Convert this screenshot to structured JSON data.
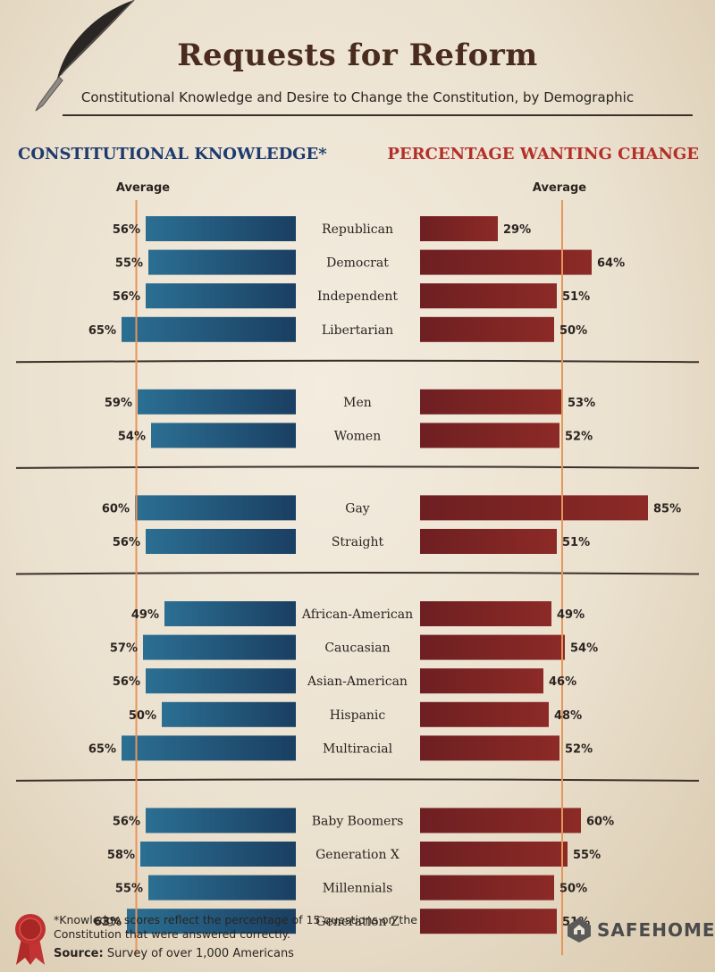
{
  "title": "Requests for Reform",
  "subtitle": "Constitutional Knowledge and Desire to Change the Constitution, by Demographic",
  "left_title": "CONSTITUTIONAL KNOWLEDGE*",
  "right_title": "PERCENTAGE WANTING CHANGE",
  "avg_label": "Average",
  "footnote": "*Knowledge scores reflect the percentage of 15 questions on the Constitution that were answered correctly.",
  "source_label": "Source:",
  "source_text": "Survey of over 1,000 Americans",
  "brand": "SAFEHOME",
  "colors": {
    "knowledge": "#1f4e78",
    "change": "#7e2222",
    "average_line": "#e8955a",
    "left_title": "#1d3b6e",
    "right_title": "#b3302a"
  },
  "chart_data": {
    "type": "bar",
    "orientation": "horizontal-diverging",
    "groups": [
      {
        "categories": [
          "Republican",
          "Democrat",
          "Independent",
          "Libertarian"
        ],
        "knowledge": [
          56,
          55,
          56,
          65
        ],
        "change": [
          29,
          64,
          51,
          50
        ]
      },
      {
        "categories": [
          "Men",
          "Women"
        ],
        "knowledge": [
          59,
          54
        ],
        "change": [
          53,
          52
        ]
      },
      {
        "categories": [
          "Gay",
          "Straight"
        ],
        "knowledge": [
          60,
          56
        ],
        "change": [
          85,
          51
        ]
      },
      {
        "categories": [
          "African-American",
          "Caucasian",
          "Asian-American",
          "Hispanic",
          "Multiracial"
        ],
        "knowledge": [
          49,
          57,
          56,
          50,
          65
        ],
        "change": [
          49,
          54,
          46,
          48,
          52
        ]
      },
      {
        "categories": [
          "Baby Boomers",
          "Generation X",
          "Millennials",
          "Generation Z"
        ],
        "knowledge": [
          56,
          58,
          55,
          63
        ],
        "change": [
          60,
          55,
          50,
          51
        ]
      }
    ],
    "series": [
      {
        "name": "CONSTITUTIONAL KNOWLEDGE*"
      },
      {
        "name": "PERCENTAGE WANTING CHANGE"
      }
    ],
    "reference_line": {
      "label": "Average",
      "knowledge": 59.5,
      "change": 53
    },
    "value_suffix": "%",
    "xlim": [
      0,
      90
    ]
  }
}
